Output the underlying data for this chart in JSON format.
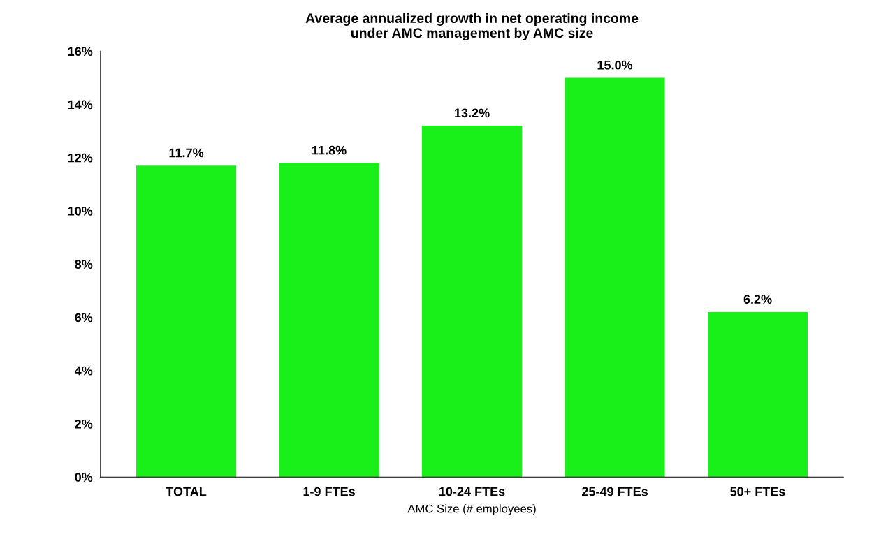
{
  "chart_data": {
    "type": "bar",
    "title": "Average annualized growth in net operating income\nunder AMC management by AMC size",
    "xlabel": "AMC Size (# employees)",
    "categories": [
      "TOTAL",
      "1-9 FTEs",
      "10-24 FTEs",
      "25-49 FTEs",
      "50+ FTEs"
    ],
    "values": [
      11.7,
      11.8,
      13.2,
      15.0,
      6.2
    ],
    "value_labels": [
      "11.7%",
      "11.8%",
      "13.2%",
      "15.0%",
      "6.2%"
    ],
    "color": "#19f019",
    "ylim": [
      0,
      16
    ],
    "yticks": [
      {
        "value": 0,
        "label": "0%"
      },
      {
        "value": 2,
        "label": "2%"
      },
      {
        "value": 4,
        "label": "4%"
      },
      {
        "value": 6,
        "label": "6%"
      },
      {
        "value": 8,
        "label": "8%"
      },
      {
        "value": 10,
        "label": "10%"
      },
      {
        "value": 12,
        "label": "12%"
      },
      {
        "value": 14,
        "label": "14%"
      },
      {
        "value": 16,
        "label": "16%"
      }
    ],
    "grid": false,
    "legend": false
  }
}
